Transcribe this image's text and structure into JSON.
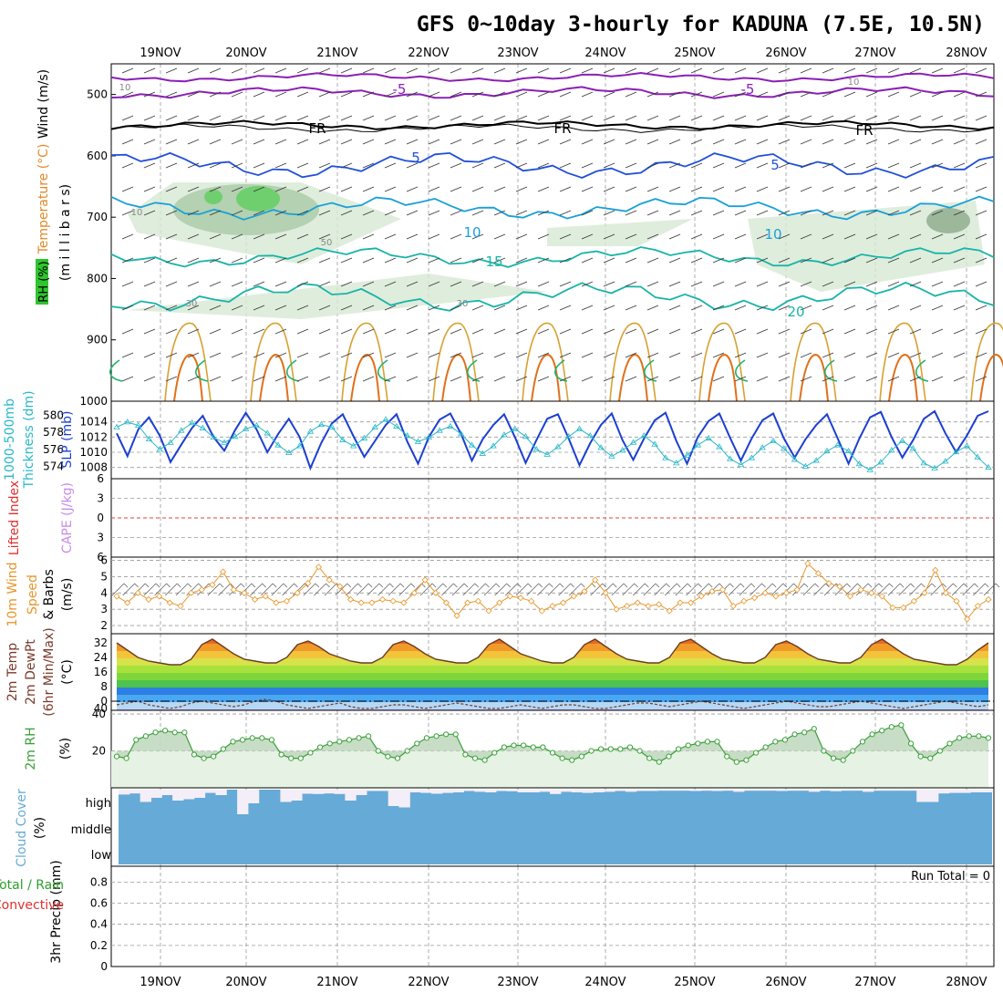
{
  "title": "GFS 0~10day 3-hourly for KADUNA (7.5E, 10.5N)",
  "dates": [
    "19NOV",
    "20NOV",
    "21NOV",
    "22NOV",
    "23NOV",
    "24NOV",
    "25NOV",
    "26NOV",
    "27NOV",
    "28NOV"
  ],
  "labels": {
    "upper": [
      "Wind (m/s)",
      "Temperature (°C)",
      "RH (%)",
      "(m i l l i b a r s)"
    ],
    "slp": [
      "1000-500mb",
      "Thickness (dm)",
      "SLP (mb)"
    ],
    "li": [
      "Lifted Index",
      "CAPE (J/kg)"
    ],
    "wind10": [
      "10m Wind",
      "Speed",
      "& Barbs",
      "(m/s)"
    ],
    "temp2m": [
      "2m Temp",
      "2m DewPt",
      "(6hr Min/Max)",
      "(°C)"
    ],
    "rh2m": [
      "2m RH",
      "(%)"
    ],
    "cloud": [
      "Cloud Cover",
      "(%)"
    ],
    "cloud_levels": [
      "high",
      "middle",
      "low"
    ],
    "precip": [
      "Total / Rain",
      "Convective",
      "3hr Precip (mm)"
    ],
    "run_total": "Run Total = 0"
  },
  "colors": {
    "purple": "#8a1fb5",
    "blue": "#2050d8",
    "cyan": "#1aa0d8",
    "teal": "#18b4a8",
    "green": "#20b070",
    "orange": "#e08a2a",
    "gold": "#d8a030",
    "magenta": "#c0207a",
    "slp": "#1c3fd0",
    "thick": "#2ab8c8",
    "wind10": "#e8962a",
    "rh": "#3aa03a",
    "cloud": "#66aad8"
  },
  "chart_data": [
    {
      "type": "contour",
      "panel": "upper-air",
      "y_axis_label": "(m i l l i b a r s)",
      "yticks": [
        500,
        600,
        700,
        800,
        900,
        1000
      ],
      "ylim": [
        450,
        1000
      ],
      "x_categories": [
        "19NOV",
        "20NOV",
        "21NOV",
        "22NOV",
        "23NOV",
        "24NOV",
        "25NOV",
        "26NOV",
        "27NOV",
        "28NOV"
      ],
      "isotherm_labels": [
        "-5",
        "FR",
        "5",
        "10",
        "15",
        "20"
      ],
      "rh_labels": [
        "10",
        "30",
        "50"
      ]
    },
    {
      "type": "line",
      "panel": "thickness-slp",
      "left_ticks": [
        574,
        576,
        578,
        580
      ],
      "right_ticks": [
        1008,
        1010,
        1012,
        1014
      ],
      "series": [
        {
          "name": "SLP (mb)",
          "axis": "right",
          "values": [
            1012.5,
            1009.5,
            1013.0,
            1014.6,
            1012.2,
            1008.7,
            1011.0,
            1013.2,
            1014.8,
            1012.0,
            1010.2,
            1012.9,
            1015.2,
            1013.0,
            1010.0,
            1012.4,
            1014.4,
            1012.0,
            1007.9,
            1011.2,
            1013.8,
            1015.0,
            1012.1,
            1009.4,
            1011.5,
            1013.6,
            1015.0,
            1011.4,
            1008.5,
            1012.0,
            1014.3,
            1015.1,
            1012.4,
            1008.9,
            1011.7,
            1013.6,
            1015.0,
            1012.0,
            1008.6,
            1011.6,
            1014.4,
            1015.0,
            1011.8,
            1008.3,
            1011.2,
            1013.6,
            1015.1,
            1011.6,
            1009.0,
            1011.8,
            1014.2,
            1015.2,
            1011.5,
            1008.5,
            1012.0,
            1014.1,
            1015.1,
            1011.9,
            1008.9,
            1011.8,
            1014.2,
            1015.1,
            1011.8,
            1009.3,
            1011.7,
            1013.6,
            1015.0,
            1011.8,
            1008.5,
            1011.8,
            1014.6,
            1015.3,
            1012.0,
            1009.3,
            1011.6,
            1014.4,
            1015.4,
            1012.5,
            1010.0,
            1012.2,
            1014.8,
            1015.4
          ]
        },
        {
          "name": "1000-500mb Thickness (dm)",
          "axis": "left",
          "values": [
            578.6,
            579.2,
            578.8,
            577.2,
            576.0,
            576.8,
            578.2,
            579.1,
            578.5,
            577.4,
            576.8,
            577.5,
            578.4,
            578.8,
            577.9,
            576.5,
            575.6,
            576.4,
            578.1,
            578.9,
            578.6,
            577.1,
            576.4,
            577.3,
            578.6,
            579.5,
            578.7,
            577.6,
            576.9,
            577.4,
            578.2,
            578.7,
            577.8,
            576.5,
            575.5,
            576.4,
            577.7,
            578.4,
            577.5,
            576.0,
            575.4,
            576.3,
            577.5,
            578.4,
            577.6,
            576.2,
            575.2,
            575.9,
            576.8,
            577.6,
            576.6,
            575.0,
            574.4,
            575.3,
            576.5,
            577.3,
            576.3,
            574.9,
            574.2,
            575.0,
            576.2,
            577.0,
            576.1,
            574.8,
            574.0,
            574.7,
            575.8,
            576.5,
            575.8,
            574.3,
            573.6,
            574.5,
            575.9,
            577.0,
            576.1,
            574.4,
            573.8,
            574.6,
            575.7,
            576.4,
            575.1,
            573.9
          ]
        }
      ]
    },
    {
      "type": "line",
      "panel": "lifted-index",
      "yticks": [
        -6,
        -3,
        0,
        3,
        6
      ],
      "ytick_labels": [
        "6",
        "3",
        "0",
        "3",
        "6"
      ],
      "zero_line": 0
    },
    {
      "type": "line",
      "panel": "10m-wind",
      "yticks": [
        2,
        3,
        4,
        5,
        6
      ],
      "ylim": [
        1.5,
        6.2
      ],
      "series": [
        {
          "name": "10m Wind Speed",
          "values": [
            3.8,
            3.4,
            4.0,
            3.6,
            3.8,
            3.4,
            3.2,
            4.0,
            4.2,
            4.5,
            5.3,
            4.2,
            4.0,
            3.6,
            3.8,
            3.4,
            3.5,
            4.0,
            4.6,
            5.6,
            4.8,
            4.4,
            3.6,
            3.4,
            3.4,
            3.6,
            3.5,
            3.4,
            4.0,
            4.8,
            4.0,
            3.4,
            2.6,
            3.4,
            3.5,
            2.9,
            3.4,
            3.8,
            3.7,
            3.5,
            2.9,
            3.2,
            3.4,
            3.8,
            4.1,
            4.8,
            4.0,
            3.0,
            3.2,
            3.4,
            3.2,
            3.3,
            2.9,
            3.4,
            3.4,
            3.8,
            4.1,
            4.2,
            3.2,
            3.5,
            3.7,
            4.0,
            3.8,
            4.0,
            4.2,
            5.8,
            5.2,
            4.6,
            4.4,
            3.8,
            4.2,
            4.0,
            3.8,
            3.1,
            3.1,
            3.5,
            4.0,
            5.4,
            4.0,
            3.5,
            2.4,
            3.2,
            3.6
          ]
        }
      ]
    },
    {
      "type": "area",
      "panel": "2m-temp",
      "yticks": [
        0,
        8,
        16,
        24,
        32
      ],
      "extra_tick": "40",
      "series": [
        {
          "name": "2m Temp",
          "values": [
            32,
            28,
            24,
            22,
            21,
            20,
            20,
            23,
            31,
            34,
            30,
            26,
            23,
            22,
            21,
            21,
            24,
            31,
            33,
            30,
            26,
            24,
            22,
            21,
            21,
            24,
            31,
            33,
            30,
            26,
            23,
            22,
            21,
            21,
            24,
            31,
            34,
            30,
            26,
            24,
            22,
            21,
            21,
            24,
            31,
            34,
            30,
            26,
            23,
            22,
            21,
            21,
            24,
            32,
            34,
            30,
            26,
            23,
            22,
            21,
            21,
            24,
            31,
            33,
            30,
            26,
            23,
            22,
            21,
            21,
            24,
            31,
            34,
            30,
            26,
            23,
            22,
            21,
            20,
            20,
            23,
            28,
            32
          ]
        },
        {
          "name": "2m DewPt",
          "values": [
            -2,
            -1,
            0,
            -2,
            -3,
            -4,
            -3,
            -1,
            0,
            -1,
            -2,
            -3,
            -2,
            0,
            1,
            0,
            -2,
            -3,
            -4,
            -3,
            -2,
            -1,
            -3,
            -4,
            -4,
            -3,
            -2,
            -2,
            -3,
            -4,
            -3,
            -2,
            -1,
            -2,
            -3,
            -4,
            -4,
            -3,
            -2,
            -3,
            -4,
            -3,
            -2,
            -2,
            -3,
            -4,
            -4,
            -3,
            -2,
            -1,
            -1,
            -2,
            -3,
            -2,
            -1,
            0,
            -1,
            -2,
            -3,
            -4,
            -3,
            -2,
            -1,
            0,
            -1,
            -2,
            -3,
            -3,
            -2,
            -1,
            0,
            -1,
            -2,
            -3,
            -4,
            -3,
            -2,
            -1,
            0,
            -1,
            -2,
            -3,
            -2
          ]
        }
      ]
    },
    {
      "type": "area",
      "panel": "2m-rh",
      "yticks": [
        20,
        40
      ],
      "series": [
        {
          "name": "2m RH",
          "values": [
            17,
            16,
            26,
            28,
            30,
            31,
            30,
            30,
            18,
            16,
            17,
            21,
            25,
            26,
            27,
            27,
            26,
            18,
            16,
            16,
            19,
            22,
            24,
            25,
            26,
            27,
            28,
            20,
            17,
            16,
            20,
            24,
            27,
            28,
            29,
            29,
            18,
            16,
            15,
            19,
            22,
            23,
            23,
            22,
            22,
            19,
            16,
            15,
            17,
            20,
            21,
            21,
            21,
            22,
            20,
            16,
            14,
            17,
            21,
            23,
            24,
            25,
            25,
            17,
            14,
            15,
            19,
            22,
            25,
            26,
            29,
            30,
            32,
            20,
            16,
            15,
            20,
            25,
            29,
            31,
            33,
            34,
            24,
            17,
            16,
            20,
            24,
            27,
            28,
            28,
            27
          ]
        }
      ]
    },
    {
      "type": "area",
      "panel": "cloud-cover",
      "levels": [
        "high",
        "middle",
        "low"
      ],
      "high_cover": [
        82,
        86,
        55,
        70,
        80,
        60,
        65,
        70,
        88,
        80,
        100,
        10,
        50,
        100,
        100,
        55,
        60,
        85,
        84,
        86,
        84,
        60,
        80,
        95,
        95,
        40,
        35,
        90,
        88,
        85,
        88,
        90,
        95,
        92,
        90,
        95,
        94,
        90,
        90,
        92,
        84,
        92,
        90,
        88,
        90,
        92,
        95,
        92,
        95,
        95,
        96,
        96,
        96,
        95,
        96,
        95,
        96,
        92,
        96,
        96,
        96,
        95,
        96,
        96,
        92,
        96,
        94,
        96,
        96,
        92,
        96,
        96,
        96,
        96,
        55,
        55,
        86,
        88,
        88,
        90,
        90
      ]
    },
    {
      "type": "bar",
      "panel": "3hr-precip",
      "yticks": [
        0,
        0.2,
        0.4,
        0.6,
        0.8
      ],
      "ylim": [
        0,
        0.95
      ],
      "values": []
    }
  ]
}
